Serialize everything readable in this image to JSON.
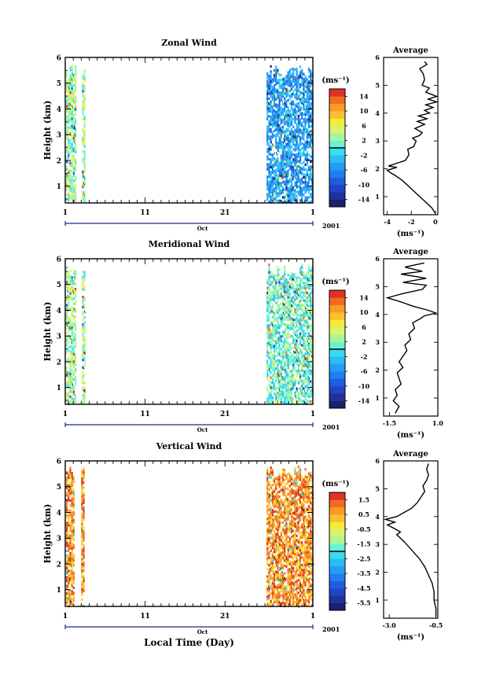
{
  "figure": {
    "xlabel": "Local Time (Day)",
    "month_label": "Oct",
    "year_label": "2001",
    "x_ticks": [
      "1",
      "11",
      "21",
      "1"
    ],
    "y_ticks": [
      "1",
      "2",
      "3",
      "4",
      "5",
      "6"
    ],
    "ylabel": "Height (km)",
    "colorbar_unit": "(ms⁻¹)",
    "profile_title": "Average",
    "profile_unit": "(ms⁻¹)"
  },
  "chart_data": [
    {
      "type": "heatmap",
      "title": "Zonal Wind",
      "ylabel": "Height (km)",
      "xlim_days": [
        1,
        32
      ],
      "ylim": [
        0.35,
        6
      ],
      "colorbar": {
        "unit": "(ms⁻¹)",
        "ticks": [
          "14",
          "10",
          "6",
          "2",
          "-2",
          "-6",
          "-10",
          "-14"
        ],
        "range": [
          -16,
          16
        ]
      },
      "data_segments": [
        {
          "x": [
            1.1,
            2.2
          ],
          "dominant_value": 2
        },
        {
          "x": [
            3.1,
            3.4
          ],
          "dominant_value": 2
        },
        {
          "x": [
            26.2,
            32
          ],
          "dominant_value": -6
        }
      ],
      "profile": {
        "title": "Average",
        "xlabel": "(ms⁻¹)",
        "x_ticks": [
          "-4",
          "-2",
          "0"
        ],
        "xlim": [
          -4.3,
          0.2
        ],
        "ylim": [
          0.35,
          6
        ],
        "points": [
          [
            0.0,
            0.4
          ],
          [
            -0.3,
            0.6
          ],
          [
            -0.8,
            0.8
          ],
          [
            -1.3,
            1.0
          ],
          [
            -1.8,
            1.2
          ],
          [
            -2.3,
            1.4
          ],
          [
            -2.8,
            1.6
          ],
          [
            -3.3,
            1.75
          ],
          [
            -3.7,
            1.85
          ],
          [
            -4.0,
            1.95
          ],
          [
            -3.2,
            2.05
          ],
          [
            -3.9,
            2.1
          ],
          [
            -2.5,
            2.3
          ],
          [
            -2.2,
            2.5
          ],
          [
            -2.3,
            2.7
          ],
          [
            -1.8,
            2.8
          ],
          [
            -1.6,
            3.0
          ],
          [
            -1.9,
            3.1
          ],
          [
            -1.3,
            3.2
          ],
          [
            -1.1,
            3.3
          ],
          [
            -1.7,
            3.45
          ],
          [
            -0.9,
            3.6
          ],
          [
            -1.5,
            3.7
          ],
          [
            -0.7,
            3.8
          ],
          [
            -1.4,
            3.9
          ],
          [
            -0.5,
            4.0
          ],
          [
            -0.9,
            4.1
          ],
          [
            -0.2,
            4.2
          ],
          [
            -0.8,
            4.3
          ],
          [
            0.1,
            4.4
          ],
          [
            -0.6,
            4.5
          ],
          [
            0.1,
            4.6
          ],
          [
            -0.8,
            4.75
          ],
          [
            -0.5,
            4.9
          ],
          [
            -1.1,
            5.0
          ],
          [
            -0.9,
            5.2
          ],
          [
            -1.0,
            5.4
          ],
          [
            -1.3,
            5.6
          ],
          [
            -0.7,
            5.75
          ],
          [
            -0.9,
            5.85
          ]
        ]
      }
    },
    {
      "type": "heatmap",
      "title": "Meridional Wind",
      "ylabel": "Height (km)",
      "xlim_days": [
        1,
        32
      ],
      "ylim": [
        0.35,
        6
      ],
      "colorbar": {
        "unit": "(ms⁻¹)",
        "ticks": [
          "14",
          "10",
          "6",
          "2",
          "-2",
          "-6",
          "-10",
          "-14"
        ],
        "range": [
          -16,
          16
        ]
      },
      "data_segments": [
        {
          "x": [
            1.1,
            2.2
          ],
          "dominant_value": 2
        },
        {
          "x": [
            3.1,
            3.4
          ],
          "dominant_value": 2
        },
        {
          "x": [
            26.2,
            32
          ],
          "dominant_value": 0
        }
      ],
      "profile": {
        "title": "Average",
        "xlabel": "(ms⁻¹)",
        "x_ticks": [
          "-1.5",
          "1.0"
        ],
        "xlim": [
          -1.8,
          1.0
        ],
        "ylim": [
          0.35,
          6
        ],
        "points": [
          [
            -1.2,
            0.45
          ],
          [
            -1.0,
            0.7
          ],
          [
            -1.3,
            0.9
          ],
          [
            -1.1,
            1.1
          ],
          [
            -1.2,
            1.3
          ],
          [
            -0.9,
            1.5
          ],
          [
            -1.0,
            1.7
          ],
          [
            -1.1,
            1.9
          ],
          [
            -0.8,
            2.1
          ],
          [
            -1.0,
            2.3
          ],
          [
            -0.8,
            2.5
          ],
          [
            -0.6,
            2.7
          ],
          [
            -0.7,
            2.9
          ],
          [
            -0.4,
            3.1
          ],
          [
            -0.5,
            3.3
          ],
          [
            -0.2,
            3.5
          ],
          [
            -0.3,
            3.7
          ],
          [
            0.1,
            3.85
          ],
          [
            0.3,
            3.95
          ],
          [
            0.9,
            4.05
          ],
          [
            0.5,
            4.15
          ],
          [
            -0.3,
            4.3
          ],
          [
            -0.9,
            4.45
          ],
          [
            -1.6,
            4.6
          ],
          [
            -0.8,
            4.75
          ],
          [
            0.2,
            4.9
          ],
          [
            0.4,
            5.05
          ],
          [
            -0.8,
            5.15
          ],
          [
            0.4,
            5.3
          ],
          [
            -0.9,
            5.45
          ],
          [
            0.2,
            5.55
          ],
          [
            -0.7,
            5.7
          ],
          [
            0.3,
            5.85
          ]
        ]
      }
    },
    {
      "type": "heatmap",
      "title": "Vertical Wind",
      "ylabel": "Height (km)",
      "xlim_days": [
        1,
        32
      ],
      "ylim": [
        0.35,
        6
      ],
      "colorbar": {
        "unit": "(ms⁻¹)",
        "ticks": [
          "1.5",
          "0.5",
          "-0.5",
          "-1.5",
          "-2.5",
          "-3.5",
          "-4.5",
          "-5.5"
        ],
        "range": [
          -6,
          2
        ]
      },
      "data_segments": [
        {
          "x": [
            1.1,
            2.0
          ],
          "dominant_value": 0.5
        },
        {
          "x": [
            3.0,
            3.4
          ],
          "dominant_value": 0.5
        },
        {
          "x": [
            26.2,
            32
          ],
          "dominant_value": 0.5
        }
      ],
      "profile": {
        "title": "Average",
        "xlabel": "(ms⁻¹)",
        "x_ticks": [
          "-3.0",
          "-0.5"
        ],
        "xlim": [
          -3.3,
          -0.4
        ],
        "ylim": [
          0.35,
          6
        ],
        "points": [
          [
            -0.5,
            0.4
          ],
          [
            -0.5,
            0.7
          ],
          [
            -0.6,
            1.0
          ],
          [
            -0.6,
            1.3
          ],
          [
            -0.7,
            1.6
          ],
          [
            -0.9,
            1.9
          ],
          [
            -1.1,
            2.2
          ],
          [
            -1.4,
            2.5
          ],
          [
            -1.8,
            2.8
          ],
          [
            -2.2,
            3.1
          ],
          [
            -2.6,
            3.35
          ],
          [
            -2.4,
            3.45
          ],
          [
            -2.8,
            3.6
          ],
          [
            -3.1,
            3.7
          ],
          [
            -2.7,
            3.8
          ],
          [
            -3.2,
            3.9
          ],
          [
            -2.6,
            4.0
          ],
          [
            -2.2,
            4.15
          ],
          [
            -1.8,
            4.3
          ],
          [
            -1.5,
            4.5
          ],
          [
            -1.3,
            4.7
          ],
          [
            -1.1,
            4.9
          ],
          [
            -1.2,
            5.1
          ],
          [
            -1.0,
            5.3
          ],
          [
            -0.9,
            5.5
          ],
          [
            -1.0,
            5.7
          ],
          [
            -0.9,
            5.9
          ]
        ]
      }
    }
  ]
}
